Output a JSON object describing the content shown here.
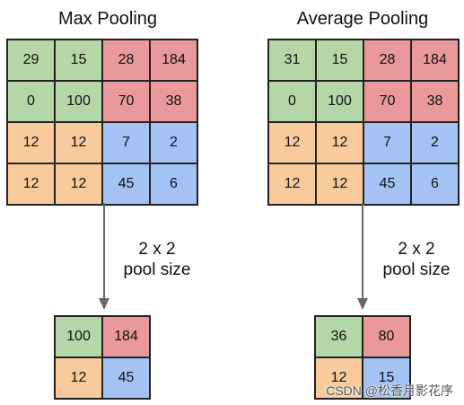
{
  "colors": {
    "green": "#b5d7a8",
    "red": "#e99999",
    "orange": "#f9cb9c",
    "blue": "#a4c2f4",
    "border": "#222222"
  },
  "max_pooling": {
    "title": "Max Pooling",
    "input": [
      [
        "29",
        "15",
        "28",
        "184"
      ],
      [
        "0",
        "100",
        "70",
        "38"
      ],
      [
        "12",
        "12",
        "7",
        "2"
      ],
      [
        "12",
        "12",
        "45",
        "6"
      ]
    ],
    "pool_size_line1": "2 x 2",
    "pool_size_line2": "pool size",
    "output": [
      [
        "100",
        "184"
      ],
      [
        "12",
        "45"
      ]
    ]
  },
  "average_pooling": {
    "title": "Average Pooling",
    "input": [
      [
        "31",
        "15",
        "28",
        "184"
      ],
      [
        "0",
        "100",
        "70",
        "38"
      ],
      [
        "12",
        "12",
        "7",
        "2"
      ],
      [
        "12",
        "12",
        "45",
        "6"
      ]
    ],
    "pool_size_line1": "2 x 2",
    "pool_size_line2": "pool size",
    "output": [
      [
        "36",
        "80"
      ],
      [
        "12",
        "15"
      ]
    ]
  },
  "watermark": "CSDN @松香月影花序"
}
